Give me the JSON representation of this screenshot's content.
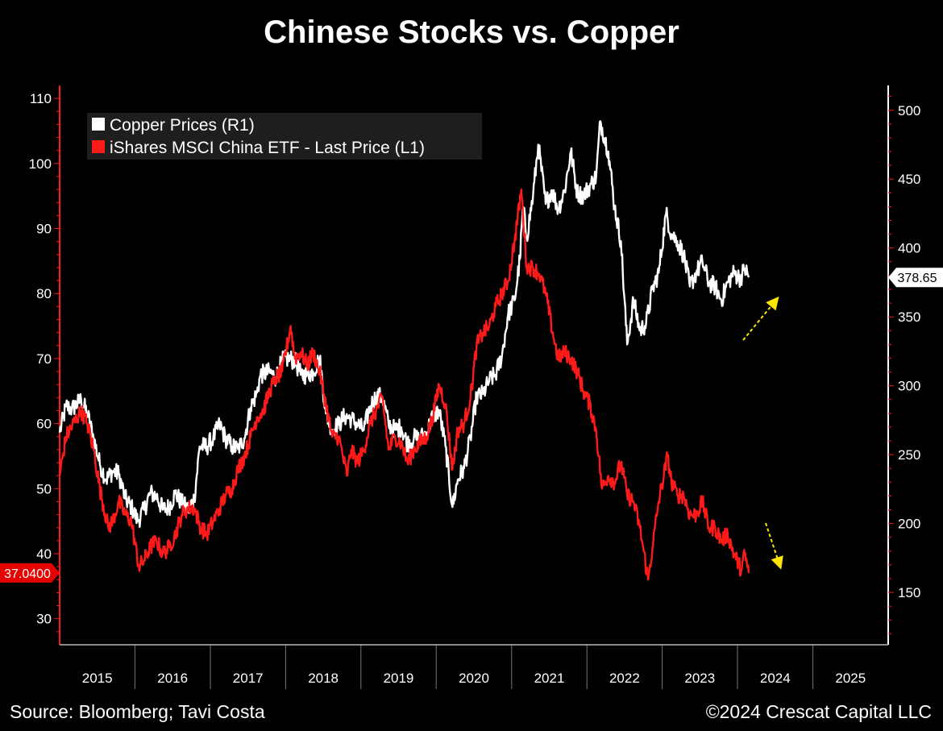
{
  "page": {
    "title": "Chinese Stocks vs. Copper",
    "source": "Source: Bloomberg; Tavi Costa",
    "credit": "©2024 Crescat Capital LLC"
  },
  "chart_data": {
    "type": "line",
    "title": "Chinese Stocks vs. Copper",
    "x_ticks": [
      "2015",
      "2016",
      "2017",
      "2018",
      "2019",
      "2020",
      "2021",
      "2022",
      "2023",
      "2024",
      "2025"
    ],
    "x_range": [
      "2015-01-01",
      "2026-01-01"
    ],
    "y_left": {
      "ticks": [
        30,
        40,
        50,
        60,
        70,
        80,
        90,
        100,
        110
      ],
      "range": [
        26,
        112
      ],
      "color": "#ff1a1a"
    },
    "y_right": {
      "ticks": [
        150,
        200,
        250,
        300,
        350,
        400,
        450,
        500
      ],
      "range": [
        112,
        518
      ],
      "color": "#ffffff"
    },
    "legend": {
      "placement": "top-left"
    },
    "last_value_labels": {
      "left": "37.0400",
      "right": "378.65"
    },
    "series": [
      {
        "name": "Copper Prices (R1)",
        "axis": "right",
        "color": "#ffffff",
        "points": [
          [
            "2015-01-01",
            266
          ],
          [
            "2015-02-01",
            285
          ],
          [
            "2015-03-01",
            283
          ],
          [
            "2015-04-15",
            290
          ],
          [
            "2015-05-15",
            280
          ],
          [
            "2015-06-15",
            262
          ],
          [
            "2015-07-15",
            243
          ],
          [
            "2015-08-15",
            232
          ],
          [
            "2015-09-15",
            238
          ],
          [
            "2015-10-15",
            236
          ],
          [
            "2015-11-15",
            218
          ],
          [
            "2015-12-15",
            212
          ],
          [
            "2016-01-15",
            202
          ],
          [
            "2016-02-15",
            210
          ],
          [
            "2016-03-15",
            222
          ],
          [
            "2016-04-15",
            220
          ],
          [
            "2016-05-15",
            210
          ],
          [
            "2016-06-15",
            212
          ],
          [
            "2016-07-15",
            222
          ],
          [
            "2016-08-15",
            215
          ],
          [
            "2016-09-15",
            210
          ],
          [
            "2016-10-15",
            218
          ],
          [
            "2016-11-10",
            256
          ],
          [
            "2016-12-15",
            256
          ],
          [
            "2017-01-15",
            262
          ],
          [
            "2017-02-15",
            272
          ],
          [
            "2017-03-15",
            262
          ],
          [
            "2017-04-15",
            256
          ],
          [
            "2017-05-15",
            254
          ],
          [
            "2017-06-15",
            262
          ],
          [
            "2017-07-15",
            284
          ],
          [
            "2017-08-15",
            295
          ],
          [
            "2017-09-01",
            308
          ],
          [
            "2017-10-15",
            310
          ],
          [
            "2017-11-15",
            306
          ],
          [
            "2017-12-15",
            318
          ],
          [
            "2018-01-15",
            320
          ],
          [
            "2018-02-15",
            318
          ],
          [
            "2018-03-15",
            308
          ],
          [
            "2018-04-15",
            308
          ],
          [
            "2018-05-15",
            310
          ],
          [
            "2018-06-15",
            320
          ],
          [
            "2018-07-15",
            280
          ],
          [
            "2018-08-15",
            268
          ],
          [
            "2018-09-15",
            272
          ],
          [
            "2018-10-15",
            278
          ],
          [
            "2018-11-15",
            276
          ],
          [
            "2018-12-15",
            272
          ],
          [
            "2019-01-15",
            268
          ],
          [
            "2019-02-15",
            285
          ],
          [
            "2019-03-15",
            292
          ],
          [
            "2019-04-15",
            292
          ],
          [
            "2019-05-15",
            272
          ],
          [
            "2019-06-15",
            268
          ],
          [
            "2019-07-15",
            270
          ],
          [
            "2019-08-15",
            258
          ],
          [
            "2019-09-15",
            262
          ],
          [
            "2019-10-15",
            262
          ],
          [
            "2019-11-15",
            266
          ],
          [
            "2019-12-15",
            278
          ],
          [
            "2020-01-15",
            282
          ],
          [
            "2020-02-15",
            256
          ],
          [
            "2020-03-20",
            212
          ],
          [
            "2020-04-15",
            232
          ],
          [
            "2020-05-15",
            240
          ],
          [
            "2020-06-15",
            262
          ],
          [
            "2020-07-15",
            292
          ],
          [
            "2020-08-15",
            294
          ],
          [
            "2020-09-15",
            304
          ],
          [
            "2020-10-15",
            308
          ],
          [
            "2020-11-15",
            322
          ],
          [
            "2020-12-15",
            352
          ],
          [
            "2021-01-15",
            362
          ],
          [
            "2021-02-10",
            392
          ],
          [
            "2021-02-25",
            430
          ],
          [
            "2021-03-15",
            408
          ],
          [
            "2021-04-15",
            438
          ],
          [
            "2021-05-10",
            475
          ],
          [
            "2021-06-15",
            432
          ],
          [
            "2021-07-15",
            442
          ],
          [
            "2021-08-15",
            428
          ],
          [
            "2021-09-15",
            442
          ],
          [
            "2021-10-15",
            470
          ],
          [
            "2021-11-15",
            440
          ],
          [
            "2021-12-15",
            438
          ],
          [
            "2022-01-15",
            445
          ],
          [
            "2022-02-15",
            452
          ],
          [
            "2022-03-07",
            492
          ],
          [
            "2022-04-15",
            470
          ],
          [
            "2022-05-15",
            430
          ],
          [
            "2022-06-15",
            405
          ],
          [
            "2022-07-15",
            330
          ],
          [
            "2022-08-15",
            362
          ],
          [
            "2022-09-15",
            340
          ],
          [
            "2022-10-15",
            345
          ],
          [
            "2022-11-15",
            370
          ],
          [
            "2022-12-15",
            382
          ],
          [
            "2023-01-20",
            425
          ],
          [
            "2023-02-15",
            410
          ],
          [
            "2023-03-15",
            405
          ],
          [
            "2023-04-15",
            395
          ],
          [
            "2023-05-15",
            372
          ],
          [
            "2023-06-15",
            382
          ],
          [
            "2023-07-15",
            390
          ],
          [
            "2023-08-15",
            375
          ],
          [
            "2023-09-15",
            372
          ],
          [
            "2023-10-15",
            362
          ],
          [
            "2023-11-15",
            375
          ],
          [
            "2023-12-15",
            382
          ],
          [
            "2024-01-15",
            378
          ],
          [
            "2024-02-05",
            385
          ],
          [
            "2024-02-25",
            378.65
          ]
        ]
      },
      {
        "name": "iShares MSCI China ETF - Last Price (L1)",
        "axis": "left",
        "color": "#ff1a1a",
        "points": [
          [
            "2015-01-01",
            52
          ],
          [
            "2015-02-01",
            58
          ],
          [
            "2015-04-15",
            62
          ],
          [
            "2015-05-15",
            60
          ],
          [
            "2015-06-15",
            56
          ],
          [
            "2015-07-15",
            50
          ],
          [
            "2015-08-25",
            44
          ],
          [
            "2015-09-15",
            45
          ],
          [
            "2015-10-15",
            48
          ],
          [
            "2015-11-15",
            46
          ],
          [
            "2015-12-15",
            45
          ],
          [
            "2016-01-20",
            38
          ],
          [
            "2016-02-15",
            39
          ],
          [
            "2016-03-15",
            41
          ],
          [
            "2016-04-15",
            42
          ],
          [
            "2016-05-15",
            40
          ],
          [
            "2016-06-15",
            41
          ],
          [
            "2016-07-15",
            43
          ],
          [
            "2016-08-15",
            46
          ],
          [
            "2016-09-15",
            47
          ],
          [
            "2016-10-15",
            47
          ],
          [
            "2016-11-15",
            44
          ],
          [
            "2016-12-15",
            43
          ],
          [
            "2017-01-15",
            45
          ],
          [
            "2017-02-15",
            47
          ],
          [
            "2017-03-15",
            49
          ],
          [
            "2017-04-15",
            50
          ],
          [
            "2017-05-15",
            53
          ],
          [
            "2017-06-15",
            55
          ],
          [
            "2017-07-15",
            58
          ],
          [
            "2017-08-15",
            61
          ],
          [
            "2017-09-15",
            62
          ],
          [
            "2017-10-15",
            65
          ],
          [
            "2017-11-15",
            67
          ],
          [
            "2017-12-15",
            68
          ],
          [
            "2018-01-25",
            75
          ],
          [
            "2018-02-15",
            70
          ],
          [
            "2018-03-15",
            71
          ],
          [
            "2018-04-15",
            69
          ],
          [
            "2018-05-15",
            71
          ],
          [
            "2018-06-15",
            68
          ],
          [
            "2018-07-15",
            63
          ],
          [
            "2018-08-15",
            58
          ],
          [
            "2018-09-15",
            58
          ],
          [
            "2018-10-25",
            52
          ],
          [
            "2018-11-15",
            56
          ],
          [
            "2018-12-15",
            54
          ],
          [
            "2019-01-15",
            56
          ],
          [
            "2019-02-15",
            60
          ],
          [
            "2019-03-15",
            62
          ],
          [
            "2019-04-15",
            64
          ],
          [
            "2019-05-15",
            56
          ],
          [
            "2019-06-15",
            58
          ],
          [
            "2019-07-15",
            57
          ],
          [
            "2019-08-15",
            54
          ],
          [
            "2019-09-15",
            56
          ],
          [
            "2019-10-15",
            57
          ],
          [
            "2019-11-15",
            58
          ],
          [
            "2019-12-15",
            61
          ],
          [
            "2020-01-15",
            66
          ],
          [
            "2020-02-15",
            63
          ],
          [
            "2020-03-20",
            53
          ],
          [
            "2020-04-15",
            59
          ],
          [
            "2020-05-15",
            60
          ],
          [
            "2020-06-15",
            64
          ],
          [
            "2020-07-15",
            72
          ],
          [
            "2020-08-15",
            74
          ],
          [
            "2020-09-15",
            75
          ],
          [
            "2020-10-15",
            78
          ],
          [
            "2020-11-15",
            80
          ],
          [
            "2020-12-15",
            82
          ],
          [
            "2021-01-15",
            88
          ],
          [
            "2021-02-17",
            96
          ],
          [
            "2021-03-15",
            84
          ],
          [
            "2021-04-15",
            84
          ],
          [
            "2021-05-15",
            83
          ],
          [
            "2021-06-15",
            80
          ],
          [
            "2021-07-25",
            73
          ],
          [
            "2021-08-15",
            70
          ],
          [
            "2021-09-15",
            71
          ],
          [
            "2021-10-15",
            70
          ],
          [
            "2021-11-15",
            68
          ],
          [
            "2021-12-15",
            65
          ],
          [
            "2022-01-15",
            63
          ],
          [
            "2022-02-15",
            59
          ],
          [
            "2022-03-15",
            50
          ],
          [
            "2022-04-15",
            52
          ],
          [
            "2022-05-15",
            51
          ],
          [
            "2022-06-15",
            54
          ],
          [
            "2022-07-15",
            49
          ],
          [
            "2022-08-15",
            48
          ],
          [
            "2022-09-15",
            44
          ],
          [
            "2022-10-25",
            36
          ],
          [
            "2022-11-15",
            41
          ],
          [
            "2022-12-15",
            48
          ],
          [
            "2023-01-27",
            55
          ],
          [
            "2023-02-15",
            51
          ],
          [
            "2023-03-15",
            49
          ],
          [
            "2023-04-15",
            49
          ],
          [
            "2023-05-15",
            46
          ],
          [
            "2023-06-15",
            46
          ],
          [
            "2023-07-15",
            48
          ],
          [
            "2023-08-15",
            44
          ],
          [
            "2023-09-15",
            44
          ],
          [
            "2023-10-15",
            42
          ],
          [
            "2023-11-15",
            43
          ],
          [
            "2023-12-15",
            40
          ],
          [
            "2024-01-20",
            37.5
          ],
          [
            "2024-02-05",
            40
          ],
          [
            "2024-02-25",
            37.04
          ]
        ]
      }
    ]
  }
}
